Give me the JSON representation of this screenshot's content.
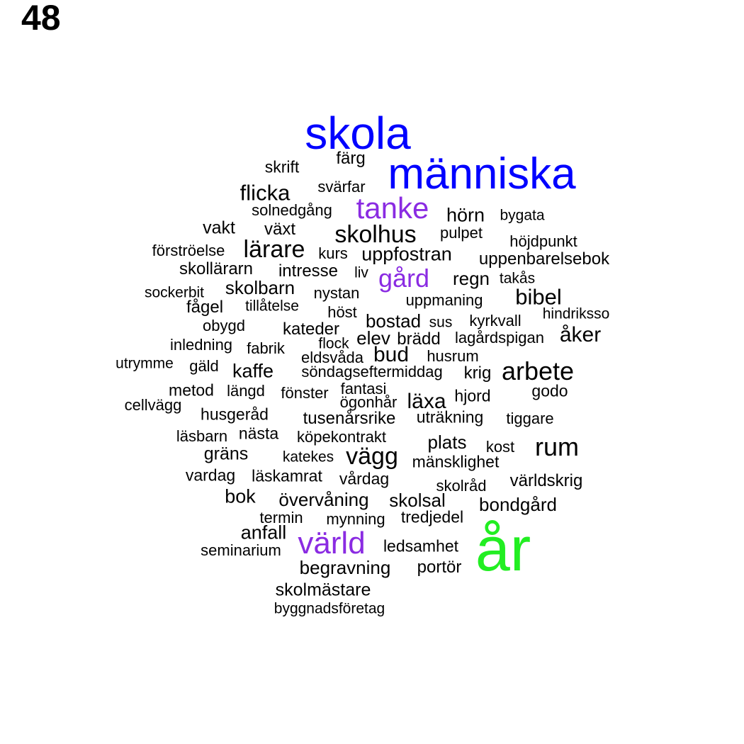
{
  "page_number": "48",
  "colors": {
    "black": "#000000",
    "blue": "#0000ff",
    "purple": "#8a2be2",
    "green": "#22ee22"
  },
  "words": [
    {
      "text": "skola",
      "color": "blue"
    },
    {
      "text": "människa",
      "color": "blue"
    },
    {
      "text": "tanke",
      "color": "purple"
    },
    {
      "text": "gård",
      "color": "purple"
    },
    {
      "text": "värld",
      "color": "purple"
    },
    {
      "text": "år",
      "color": "green"
    },
    {
      "text": "färg",
      "color": "black"
    },
    {
      "text": "skrift",
      "color": "black"
    },
    {
      "text": "svärfar",
      "color": "black"
    },
    {
      "text": "flicka",
      "color": "black"
    },
    {
      "text": "solnedgång",
      "color": "black"
    },
    {
      "text": "hörn",
      "color": "black"
    },
    {
      "text": "bygata",
      "color": "black"
    },
    {
      "text": "vakt",
      "color": "black"
    },
    {
      "text": "växt",
      "color": "black"
    },
    {
      "text": "skolhus",
      "color": "black"
    },
    {
      "text": "pulpet",
      "color": "black"
    },
    {
      "text": "höjdpunkt",
      "color": "black"
    },
    {
      "text": "förströelse",
      "color": "black"
    },
    {
      "text": "lärare",
      "color": "black"
    },
    {
      "text": "kurs",
      "color": "black"
    },
    {
      "text": "uppfostran",
      "color": "black"
    },
    {
      "text": "uppenbarelsebok",
      "color": "black"
    },
    {
      "text": "skollärarn",
      "color": "black"
    },
    {
      "text": "intresse",
      "color": "black"
    },
    {
      "text": "liv",
      "color": "black"
    },
    {
      "text": "regn",
      "color": "black"
    },
    {
      "text": "takås",
      "color": "black"
    },
    {
      "text": "sockerbit",
      "color": "black"
    },
    {
      "text": "skolbarn",
      "color": "black"
    },
    {
      "text": "nystan",
      "color": "black"
    },
    {
      "text": "uppmaning",
      "color": "black"
    },
    {
      "text": "bibel",
      "color": "black"
    },
    {
      "text": "fågel",
      "color": "black"
    },
    {
      "text": "tillåtelse",
      "color": "black"
    },
    {
      "text": "höst",
      "color": "black"
    },
    {
      "text": "hindriksso",
      "color": "black"
    },
    {
      "text": "bostad",
      "color": "black"
    },
    {
      "text": "sus",
      "color": "black"
    },
    {
      "text": "kyrkvall",
      "color": "black"
    },
    {
      "text": "obygd",
      "color": "black"
    },
    {
      "text": "kateder",
      "color": "black"
    },
    {
      "text": "åker",
      "color": "black"
    },
    {
      "text": "inledning",
      "color": "black"
    },
    {
      "text": "flock",
      "color": "black"
    },
    {
      "text": "elev",
      "color": "black"
    },
    {
      "text": "brädd",
      "color": "black"
    },
    {
      "text": "lagårdspigan",
      "color": "black"
    },
    {
      "text": "fabrik",
      "color": "black"
    },
    {
      "text": "eldsvåda",
      "color": "black"
    },
    {
      "text": "bud",
      "color": "black"
    },
    {
      "text": "husrum",
      "color": "black"
    },
    {
      "text": "utrymme",
      "color": "black"
    },
    {
      "text": "gäld",
      "color": "black"
    },
    {
      "text": "kaffe",
      "color": "black"
    },
    {
      "text": "söndagseftermiddag",
      "color": "black"
    },
    {
      "text": "krig",
      "color": "black"
    },
    {
      "text": "arbete",
      "color": "black"
    },
    {
      "text": "metod",
      "color": "black"
    },
    {
      "text": "längd",
      "color": "black"
    },
    {
      "text": "fönster",
      "color": "black"
    },
    {
      "text": "fantasi",
      "color": "black"
    },
    {
      "text": "godo",
      "color": "black"
    },
    {
      "text": "cellvägg",
      "color": "black"
    },
    {
      "text": "ögonhår",
      "color": "black"
    },
    {
      "text": "läxa",
      "color": "black"
    },
    {
      "text": "hjord",
      "color": "black"
    },
    {
      "text": "husgeråd",
      "color": "black"
    },
    {
      "text": "tusenårsrike",
      "color": "black"
    },
    {
      "text": "uträkning",
      "color": "black"
    },
    {
      "text": "tiggare",
      "color": "black"
    },
    {
      "text": "läsbarn",
      "color": "black"
    },
    {
      "text": "nästa",
      "color": "black"
    },
    {
      "text": "köpekontrakt",
      "color": "black"
    },
    {
      "text": "plats",
      "color": "black"
    },
    {
      "text": "kost",
      "color": "black"
    },
    {
      "text": "rum",
      "color": "black"
    },
    {
      "text": "gräns",
      "color": "black"
    },
    {
      "text": "katekes",
      "color": "black"
    },
    {
      "text": "vägg",
      "color": "black"
    },
    {
      "text": "mänsklighet",
      "color": "black"
    },
    {
      "text": "vardag",
      "color": "black"
    },
    {
      "text": "läskamrat",
      "color": "black"
    },
    {
      "text": "vårdag",
      "color": "black"
    },
    {
      "text": "skolråd",
      "color": "black"
    },
    {
      "text": "världskrig",
      "color": "black"
    },
    {
      "text": "bok",
      "color": "black"
    },
    {
      "text": "övervåning",
      "color": "black"
    },
    {
      "text": "skolsal",
      "color": "black"
    },
    {
      "text": "bondgård",
      "color": "black"
    },
    {
      "text": "termin",
      "color": "black"
    },
    {
      "text": "mynning",
      "color": "black"
    },
    {
      "text": "tredjedel",
      "color": "black"
    },
    {
      "text": "anfall",
      "color": "black"
    },
    {
      "text": "seminarium",
      "color": "black"
    },
    {
      "text": "ledsamhet",
      "color": "black"
    },
    {
      "text": "begravning",
      "color": "black"
    },
    {
      "text": "portör",
      "color": "black"
    },
    {
      "text": "skolmästare",
      "color": "black"
    },
    {
      "text": "byggnadsföretag",
      "color": "black"
    }
  ]
}
